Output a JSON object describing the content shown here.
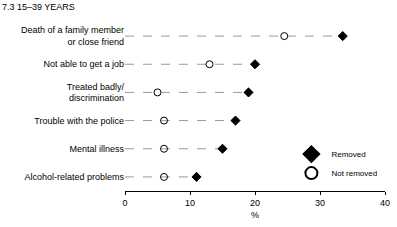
{
  "chart_data": {
    "type": "dot",
    "title": "7.3 15–39 YEARS",
    "orientation": "horizontal",
    "categories": [
      "Death of a family member or close friend",
      "Not able to get a job",
      "Treated badly/ discrimination",
      "Trouble with the police",
      "Mental illness",
      "Alcohol-related problems"
    ],
    "series": [
      {
        "name": "Removed",
        "color": "#000000",
        "marker": "diamond",
        "values": [
          33.5,
          20,
          19,
          17,
          15,
          11
        ]
      },
      {
        "name": "Not removed",
        "color": "#000000",
        "marker": "circle-open",
        "values": [
          24.5,
          13,
          5,
          6,
          6,
          6
        ]
      }
    ],
    "xlabel": "%",
    "xlim": [
      0,
      40
    ],
    "xticks": [
      0,
      10,
      20,
      30,
      40
    ],
    "grid": false,
    "legend": "lower right"
  }
}
